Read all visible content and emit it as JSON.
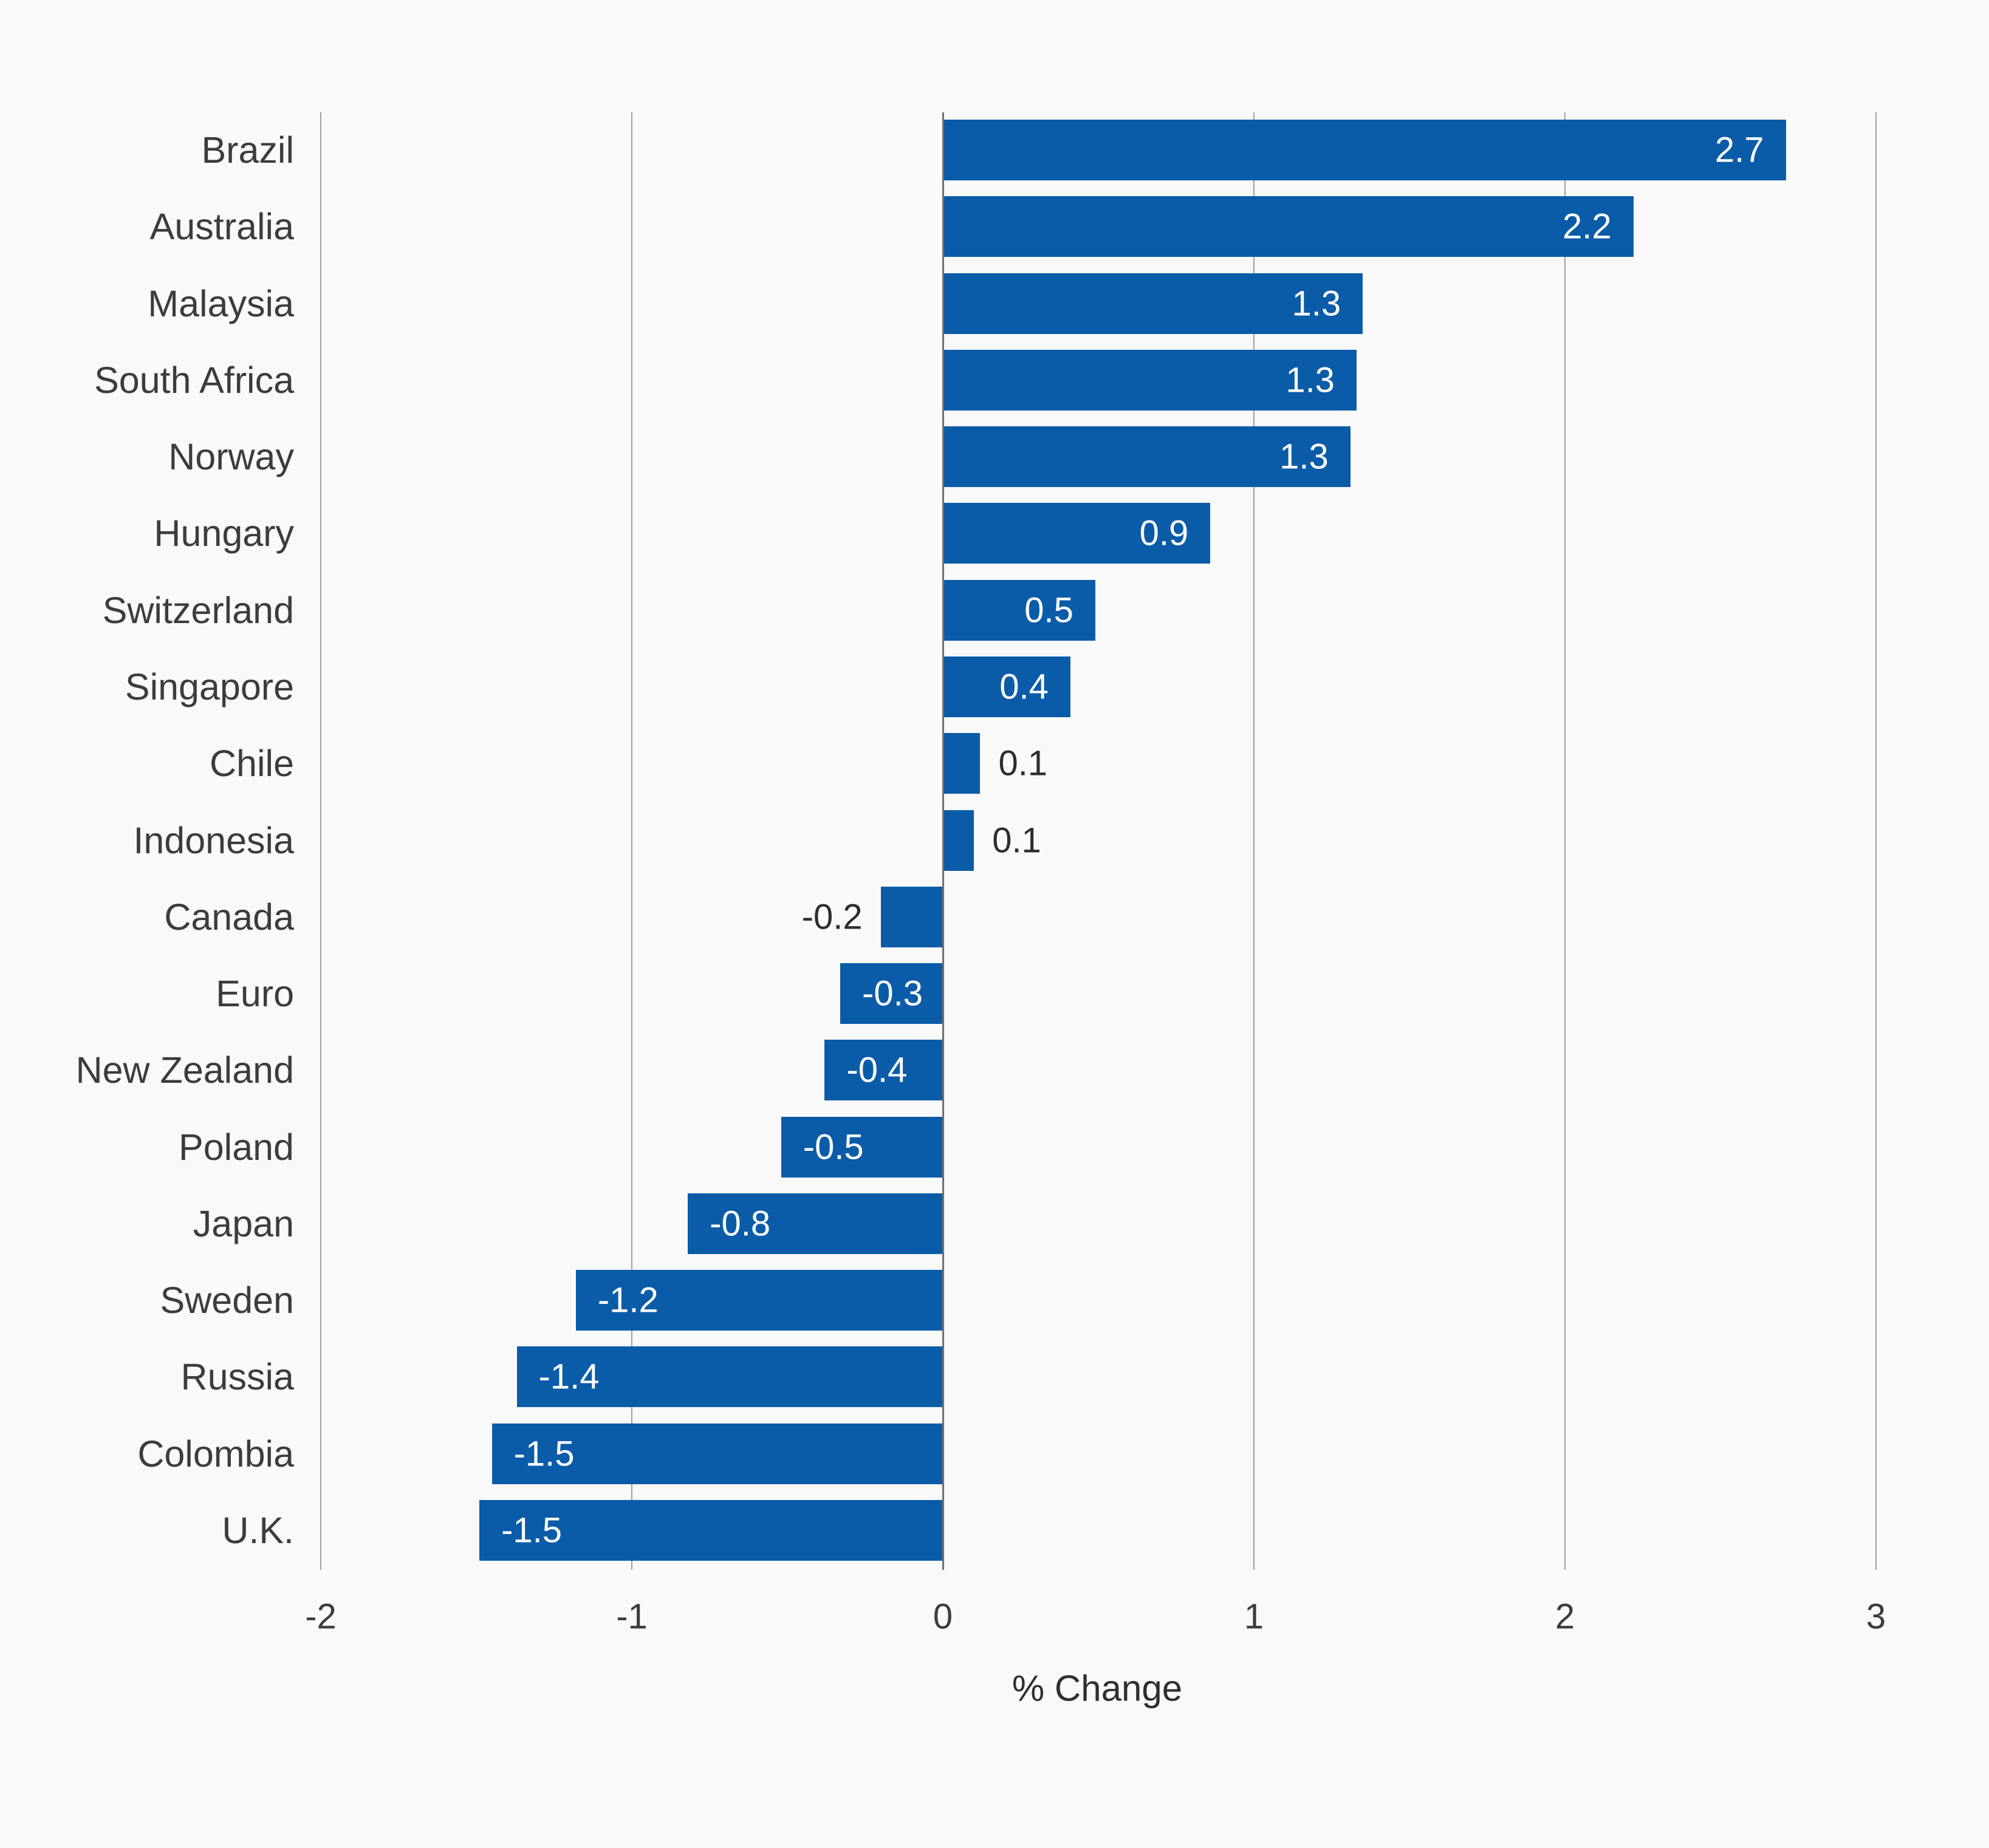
{
  "chart_data": {
    "type": "bar",
    "orientation": "horizontal",
    "title": "",
    "xlabel": "% Change",
    "ylabel": "",
    "xlim": [
      -2,
      3
    ],
    "xticks": [
      -2,
      -1,
      0,
      1,
      2,
      3
    ],
    "xtick_labels": [
      "-2",
      "-1",
      "0",
      "1",
      "2",
      "3"
    ],
    "grid": "vertical gridlines on, darker zero line",
    "legend": "none",
    "categories": [
      "Brazil",
      "Australia",
      "Malaysia",
      "South Africa",
      "Norway",
      "Hungary",
      "Switzerland",
      "Singapore",
      "Chile",
      "Indonesia",
      "Canada",
      "Euro",
      "New Zealand",
      "Poland",
      "Japan",
      "Sweden",
      "Russia",
      "Colombia",
      "U.K."
    ],
    "values": [
      2.7,
      2.2,
      1.3,
      1.3,
      1.3,
      0.9,
      0.5,
      0.4,
      0.1,
      0.1,
      -0.2,
      -0.3,
      -0.4,
      -0.5,
      -0.8,
      -1.2,
      -1.4,
      -1.5,
      -1.5
    ],
    "value_labels": [
      "2.7",
      "2.2",
      "1.3",
      "1.3",
      "1.3",
      "0.9",
      "0.5",
      "0.4",
      "0.1",
      "0.1",
      "-0.2",
      "-0.3",
      "-0.4",
      "-0.5",
      "-0.8",
      "-1.2",
      "-1.4",
      "-1.5",
      "-1.5"
    ],
    "bar_extents": [
      2.71,
      2.22,
      1.35,
      1.33,
      1.31,
      0.86,
      0.49,
      0.41,
      0.12,
      0.1,
      -0.2,
      -0.33,
      -0.38,
      -0.52,
      -0.82,
      -1.18,
      -1.37,
      -1.45,
      -1.49
    ],
    "colors": {
      "bar": "#0b5ca8",
      "background": "#f9f9f9",
      "gridline": "#9e9e9e",
      "zero_line": "#6f6f6f",
      "axis_text": "#3c3c3c",
      "value_text_inside": "#ffffff",
      "value_text_outside": "#2d2d2d"
    }
  }
}
